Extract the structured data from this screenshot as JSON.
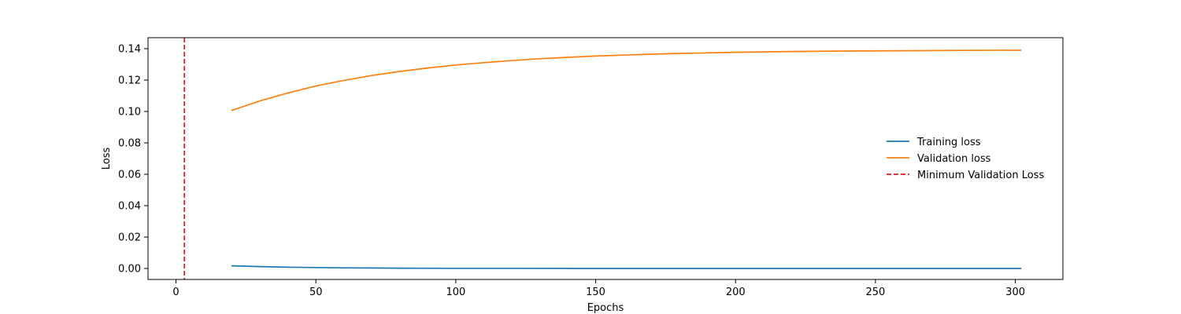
{
  "chart_data": {
    "type": "line",
    "title": "",
    "xlabel": "Epochs",
    "ylabel": "Loss",
    "xlim": [
      -10,
      317
    ],
    "ylim": [
      -0.007,
      0.147
    ],
    "x_ticks": [
      0,
      50,
      100,
      150,
      200,
      250,
      300
    ],
    "x_tick_labels": [
      "0",
      "50",
      "100",
      "150",
      "200",
      "250",
      "300"
    ],
    "y_ticks": [
      0.0,
      0.02,
      0.04,
      0.06,
      0.08,
      0.1,
      0.12,
      0.14
    ],
    "y_tick_labels": [
      "0.00",
      "0.02",
      "0.04",
      "0.06",
      "0.08",
      "0.10",
      "0.12",
      "0.14"
    ],
    "grid": false,
    "legend_position": "center-right",
    "series": [
      {
        "name": "Training loss",
        "color": "#1f77b4",
        "style": "solid",
        "x": [
          20,
          30,
          40,
          50,
          60,
          70,
          80,
          100,
          120,
          150,
          200,
          250,
          302
        ],
        "y": [
          0.0017,
          0.0012,
          0.0008,
          0.0006,
          0.0004,
          0.0003,
          0.0002,
          0.0001,
          0.0001,
          0.0,
          0.0,
          0.0,
          0.0
        ]
      },
      {
        "name": "Validation loss",
        "color": "#ff7f0e",
        "style": "solid",
        "x": [
          20,
          30,
          40,
          50,
          60,
          70,
          80,
          90,
          100,
          110,
          120,
          130,
          140,
          150,
          160,
          170,
          180,
          190,
          200,
          220,
          240,
          260,
          280,
          302
        ],
        "y": [
          0.1007,
          0.1067,
          0.1118,
          0.1162,
          0.1198,
          0.1229,
          0.1255,
          0.1277,
          0.1296,
          0.1311,
          0.1324,
          0.1336,
          0.1345,
          0.1353,
          0.1359,
          0.1365,
          0.137,
          0.1373,
          0.1377,
          0.1382,
          0.1385,
          0.1387,
          0.1389,
          0.139
        ]
      }
    ],
    "vlines": [
      {
        "name": "Minimum Validation Loss",
        "x": 3,
        "color": "#e41a1c",
        "style": "dashed"
      }
    ]
  }
}
